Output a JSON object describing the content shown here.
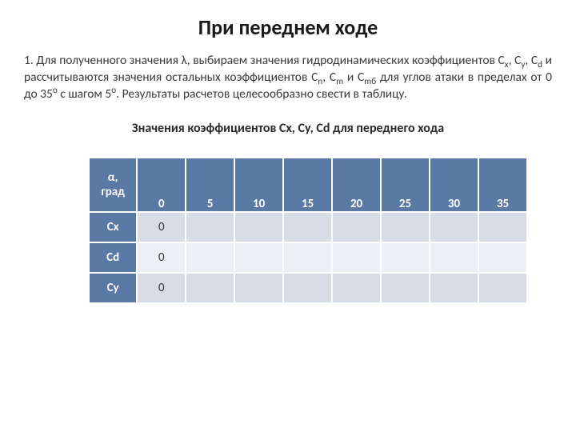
{
  "title": "При переднем ходе",
  "paragraph_html": "1. Для полученного значения λ, выбираем значения гидродинамических коэффициентов C<span class=\"subscript\">x</span>, C<span class=\"subscript\">y</span>, C<span class=\"subscript\">d</span> и рассчитываются значения остальных коэффициентов C<span class=\"subscript\">n</span>, C<span class=\"subscript\">m</span> и C<span class=\"subscript\">mб</span> для углов атаки в пределах от 0 до 35<span class=\"superscript\">o</span> с шагом 5<span class=\"superscript\">o</span>. Результаты расчетов целесообразно свести в таблицу.",
  "subtitle": "Значения коэффициентов Cx, Cy, Cd  для переднего хода",
  "table": {
    "header_top": "α,",
    "header_bottom": "град",
    "angles": [
      "0",
      "5",
      "10",
      "15",
      "20",
      "25",
      "30",
      "35"
    ],
    "rows": [
      {
        "label": "Cx",
        "first": "0",
        "rest": [
          "",
          "",
          "",
          "",
          "",
          "",
          ""
        ],
        "shade": "odd"
      },
      {
        "label": "Cd",
        "first": "0",
        "rest": [
          "",
          "",
          "",
          "",
          "",
          "",
          ""
        ],
        "shade": "even"
      },
      {
        "label": "Cy",
        "first": "0",
        "rest": [
          "",
          "",
          "",
          "",
          "",
          "",
          ""
        ],
        "shade": "odd"
      }
    ],
    "colors": {
      "header_bg": "#5a79a5",
      "header_fg": "#ffffff",
      "row_odd_bg": "#d7dde7",
      "row_even_bg": "#ecf0f4",
      "border": "#ffffff"
    }
  }
}
